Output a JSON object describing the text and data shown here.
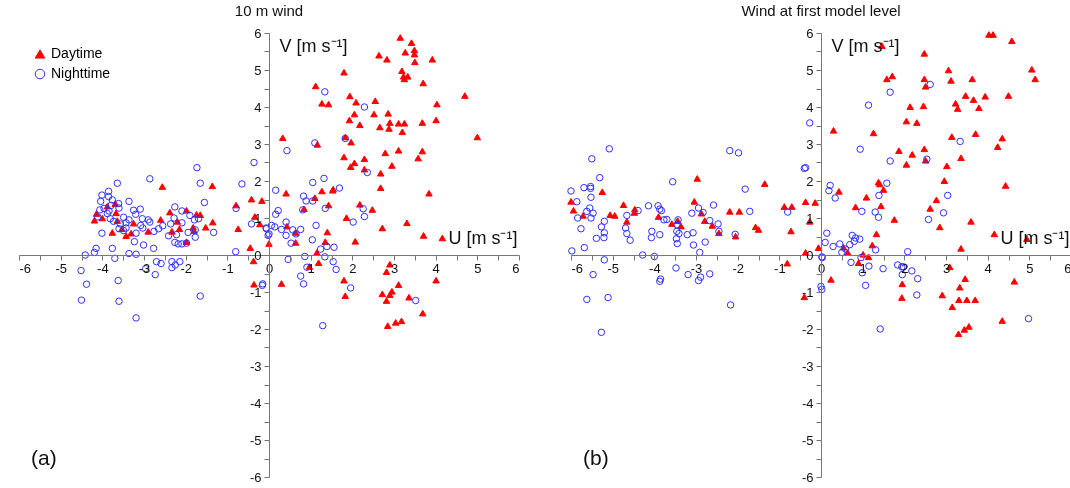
{
  "chart_data": [
    {
      "type": "scatter",
      "title": "10 m wind",
      "xlabel": "U [m s⁻¹]",
      "ylabel": "V [m s⁻¹]",
      "annotations": [
        "(a)"
      ],
      "legend": "top left",
      "xlim": [
        -6,
        6
      ],
      "ylim": [
        -6,
        6
      ],
      "xticks": [
        -6,
        {
          "value": -5.5,
          "label": null
        },
        -5,
        {
          "value": -4.5,
          "label": null
        },
        -4,
        {
          "value": -3.5,
          "label": null
        },
        -3,
        {
          "value": -2.5,
          "label": null
        },
        -2,
        {
          "value": -1.5,
          "label": null
        },
        -1,
        {
          "value": -0.5,
          "label": null
        },
        0,
        {
          "value": 0.5,
          "label": null
        },
        1,
        {
          "value": 1.5,
          "label": null
        },
        2,
        {
          "value": 2.5,
          "label": null
        },
        3,
        {
          "value": 3.5,
          "label": null
        },
        4,
        {
          "value": 4.5,
          "label": null
        },
        5,
        {
          "value": 5.5,
          "label": null
        },
        6
      ],
      "yticks": [
        -6,
        {
          "value": -5.5,
          "label": null
        },
        -5,
        {
          "value": -4.5,
          "label": null
        },
        -4,
        {
          "value": -3.5,
          "label": null
        },
        -3,
        {
          "value": -2.5,
          "label": null
        },
        -2,
        {
          "value": -1.5,
          "label": null
        },
        -1,
        {
          "value": -0.5,
          "label": null
        },
        0,
        {
          "value": 0.5,
          "label": null
        },
        1,
        {
          "value": 1.5,
          "label": null
        },
        2,
        {
          "value": 2.5,
          "label": null
        },
        3,
        {
          "value": 3.5,
          "label": null
        },
        4,
        {
          "value": 4.5,
          "label": null
        },
        5,
        {
          "value": 5.5,
          "label": null
        },
        6
      ],
      "series": [
        {
          "name": "Daytime",
          "color": "#ff0000",
          "marker": "triangle",
          "x": [
            3.15,
            3.42,
            2.64,
            3.27,
            3.49,
            3.49,
            2.83,
            3.92,
            3.5,
            3.19,
            1.8,
            3.23,
            3.33,
            3.25,
            3.7,
            1.12,
            4.7,
            1.27,
            1.43,
            1.94,
            2.09,
            2.55,
            4.03,
            2.05,
            2.52,
            2.86,
            1.93,
            4.01,
            2.18,
            2.66,
            2.9,
            3.11,
            3.25,
            3.68,
            2.88,
            3.2,
            0.33,
            1.16,
            1.83,
            1.97,
            5.0,
            3.11,
            2.79,
            3.68,
            1.8,
            2.29,
            3.58,
            2.05,
            2.95,
            1.96,
            2.29,
            2.68,
            2.68,
            0.41,
            1.54,
            1.53,
            1.27,
            3.84,
            1.1,
            1.43,
            2.18,
            0.84,
            2.48,
            1.86,
            3.31,
            2.72,
            0.43,
            0.64,
            1.4,
            3.71,
            4.16,
            0.64,
            1.35,
            2.07,
            0,
            1.15,
            0.97,
            1.19,
            2.9,
            2.82,
            0.3,
            1.8,
            4.01,
            3.11,
            1.83,
            2.72,
            2.95,
            2.9,
            2.82,
            3.36,
            3.69,
            2.85,
            3.04,
            3.18,
            -2.56,
            -1.36,
            -0.42,
            -0.17,
            -0.79,
            -3.88,
            -3.69,
            -4.14,
            -3.67,
            -2.38,
            -1.98,
            -1.74,
            -1.65,
            -0.34,
            -4.19,
            -4.0,
            -3.64,
            -2.6,
            -2.2,
            -1.35,
            -0.22,
            -3.25,
            -3.53,
            -3.76,
            -3.31,
            -3.43,
            -2.9,
            -2.33,
            -2.15,
            -1.8,
            -1.82,
            -1.52,
            -0.74,
            -1.98,
            -0.45,
            -0.37,
            -0.36
          ],
          "values": [
            5.88,
            5.74,
            5.4,
            5.48,
            5.54,
            5.43,
            5.29,
            5.29,
            5.22,
            4.98,
            4.94,
            4.83,
            4.83,
            4.76,
            4.65,
            4.57,
            4.31,
            4.1,
            4.08,
            4.3,
            4.13,
            4.17,
            4.08,
            3.81,
            3.81,
            3.83,
            3.65,
            3.65,
            3.52,
            3.46,
            3.58,
            3.56,
            3.56,
            3.58,
            3.42,
            3.33,
            3.17,
            2.99,
            3.19,
            3.05,
            3.19,
            2.83,
            2.76,
            2.81,
            2.65,
            2.6,
            2.62,
            2.49,
            2.42,
            2.39,
            2.32,
            2.21,
            1.82,
            1.67,
            1.78,
            1.75,
            1.73,
            1.67,
            1.55,
            1.35,
            1.37,
            1.25,
            1.23,
            1.01,
            0.87,
            0.73,
            0.78,
            0.61,
            0.62,
            0.53,
            0.46,
            0.34,
            0.36,
            0.37,
            0.31,
            0.07,
            -0.31,
            -0.21,
            -0.25,
            -0.45,
            -0.77,
            -0.68,
            -0.68,
            -0.8,
            -1.1,
            -1.05,
            -0.98,
            -1.07,
            -1.23,
            -1.14,
            -1.57,
            -1.91,
            -1.82,
            -1.78,
            1.85,
            1.87,
            1.51,
            1.47,
            1.35,
            1.32,
            1.39,
            1.12,
            1.14,
            1.16,
            1.21,
            1.1,
            1.09,
            1.04,
            0.94,
            1.0,
            0.93,
            0.96,
            0.91,
            0.89,
            0.84,
            0.86,
            0.71,
            0.61,
            0.59,
            0.52,
            0.64,
            0.64,
            0.71,
            0.66,
            0.75,
            0.75,
            0.71,
            0.36,
            0.2,
            -0.16,
            -0.79
          ]
        },
        {
          "name": "Nighttime",
          "color": "#3030ff",
          "marker": "circle",
          "x": [
            -1.73,
            -0.36,
            -2.86,
            -1.65,
            -0.65,
            -3.64,
            -4.01,
            -3.85,
            -3.85,
            -4.04,
            -3.76,
            -3.36,
            -3.61,
            -1.55,
            -2.26,
            -4.06,
            -3.96,
            -3.84,
            -3.88,
            -3.79,
            -3.6,
            -3.25,
            -3.09,
            -3.2,
            -2.09,
            -0.79,
            -4.11,
            -3.81,
            -3.49,
            -3.36,
            -3.04,
            -2.9,
            -2.28,
            -2.36,
            -2.09,
            -1.9,
            -1.79,
            -1.69,
            -3.73,
            -3.57,
            -3.43,
            -3.43,
            -3.08,
            -2.65,
            -2.86,
            -2.76,
            -2.55,
            -3.03,
            -3.49,
            -3.6,
            -3.19,
            -2.41,
            -2.22,
            -1.94,
            -1.77,
            -1.77,
            -1.33,
            -4.01,
            -3.23,
            -2.26,
            -2.18,
            -2.09,
            -1.98,
            -3.01,
            -2.77,
            -0.42,
            -0.07,
            0,
            -3.76,
            -4.15,
            -4.19,
            -4.41,
            -3.36,
            -3.19,
            -0.8,
            -3.7,
            -2.7,
            -2.59,
            -2.33,
            -2.14,
            -2.33,
            -2.25,
            -2.73,
            -2.96,
            -4.51,
            -4.38,
            -3.62,
            -4.5,
            -3.6,
            -1.65,
            -3.19,
            -0.15,
            1.34,
            2.29,
            1.1,
            0.43,
            1.83,
            2.36,
            1.32,
            1.05,
            1.69,
            0.16,
            0.83,
            0.89,
            1.05,
            0.81,
            1.35,
            2.26,
            0.22,
            0.16,
            2.29,
            2.02,
            0.41,
            0.06,
            0.14,
            1.13,
            -0.06,
            0.3,
            0.57,
            0.76,
            -0.02,
            0.41,
            0.53,
            0.65,
            1.04,
            1.56,
            1.39,
            1.24,
            0.86,
            1.34,
            0.46,
            1.54,
            0.91,
            1.61,
            0.76,
            0.83,
            -0.16,
            1.96,
            3.52,
            1.29
          ],
          "values": [
            2.36,
            2.5,
            2.06,
            1.94,
            1.92,
            1.94,
            1.62,
            1.72,
            1.58,
            1.45,
            1.49,
            1.45,
            1.39,
            1.42,
            1.3,
            1.22,
            1.26,
            1.19,
            1.12,
            1.34,
            1.27,
            1.21,
            1.24,
            1.1,
            1.19,
            1.26,
            1.03,
            0.98,
            1.02,
            0.95,
            0.98,
            0.95,
            1.0,
            0.84,
            0.87,
            1.07,
            0.95,
            0.98,
            0.91,
            0.84,
            0.87,
            0.73,
            0.8,
            0.71,
            0.89,
            0.64,
            0.79,
            0.73,
            0.66,
            0.71,
            0.59,
            0.52,
            0.55,
            0.61,
            0.68,
            0.48,
            0.61,
            0.59,
            0.36,
            0.34,
            0.3,
            0.3,
            0.32,
            0.27,
            0.18,
            0.84,
            0.73,
            0.57,
            0.18,
            0.18,
            0.07,
            0.0,
            0.04,
            0.02,
            0.09,
            -0.09,
            -0.18,
            -0.23,
            -0.18,
            -0.18,
            -0.34,
            -0.27,
            -0.53,
            -0.37,
            -0.42,
            -0.79,
            -0.69,
            -1.22,
            -1.25,
            -1.11,
            -1.7,
            -0.78,
            4.41,
            4.0,
            3.03,
            2.82,
            3.15,
            2.23,
            2.07,
            1.96,
            1.81,
            1.75,
            1.59,
            1.46,
            1.46,
            1.22,
            1.26,
            1.25,
            1.2,
            1.1,
            1.04,
            0.89,
            0.89,
            0.8,
            0.76,
            0.8,
            0.71,
            0.69,
            0.68,
            0.69,
            0.53,
            0.53,
            0.32,
            0.57,
            0.41,
            0.21,
            0.23,
            0.16,
            -0.04,
            -0.05,
            -0.12,
            -0.18,
            -0.33,
            -0.39,
            -0.57,
            -0.78,
            -0.82,
            -0.89,
            -1.23,
            -1.91
          ]
        }
      ]
    },
    {
      "type": "scatter",
      "title": "Wind at first model level",
      "xlabel": "U [m s⁻¹]",
      "ylabel": "V [m s⁻¹]",
      "annotations": [
        "(b)"
      ],
      "xlim": [
        -6,
        6
      ],
      "ylim": [
        -6,
        6
      ],
      "xticks": [
        -6,
        {
          "value": -5.5,
          "label": null
        },
        -5,
        {
          "value": -4.5,
          "label": null
        },
        -4,
        {
          "value": -3.5,
          "label": null
        },
        -3,
        {
          "value": -2.5,
          "label": null
        },
        -2,
        {
          "value": -1.5,
          "label": null
        },
        -1,
        {
          "value": -0.5,
          "label": null
        },
        0,
        {
          "value": 0.5,
          "label": null
        },
        1,
        {
          "value": 1.5,
          "label": null
        },
        2,
        {
          "value": 2.5,
          "label": null
        },
        3,
        {
          "value": 3.5,
          "label": null
        },
        4,
        {
          "value": 4.5,
          "label": null
        },
        5,
        {
          "value": 5.5,
          "label": null
        },
        6
      ],
      "yticks": [
        -6,
        {
          "value": -5.5,
          "label": null
        },
        -5,
        {
          "value": -4.5,
          "label": null
        },
        -4,
        {
          "value": -3.5,
          "label": null
        },
        -3,
        {
          "value": -2.5,
          "label": null
        },
        -2,
        {
          "value": -1.5,
          "label": null
        },
        -1,
        {
          "value": -0.5,
          "label": null
        },
        0,
        {
          "value": 0.5,
          "label": null
        },
        1,
        {
          "value": 1.5,
          "label": null
        },
        2,
        {
          "value": 2.5,
          "label": null
        },
        3,
        {
          "value": 3.5,
          "label": null
        },
        4,
        {
          "value": 4.5,
          "label": null
        },
        5,
        {
          "value": 5.5,
          "label": null
        },
        6
      ],
      "series": [
        {
          "color": "#ff0000",
          "marker": "triangle",
          "x": [
            -6.0,
            -5.94,
            -5.71,
            -5.25,
            -5.06,
            -4.95,
            -4.74,
            -4.66,
            -4.47,
            -4.48,
            -3.9,
            -3.58,
            -3.44,
            -3.36,
            -3.04,
            -2.97,
            -2.87,
            -2.79,
            -2.61,
            -2.45,
            -2.19,
            -1.96,
            -2.05,
            -1.57,
            -1.5,
            -1.35,
            -0.88,
            -0.7,
            -0.72,
            -0.37,
            -0.14,
            -0.27,
            -0.37,
            -0.06,
            -0.81,
            -0.4,
            4.03,
            4.13,
            4.58,
            1.46,
            2.48,
            3.06,
            5.06,
            1.58,
            1.71,
            2.48,
            3.12,
            3.63,
            5.14,
            2.51,
            3.47,
            3.94,
            4.5,
            3.66,
            3.23,
            3.28,
            2.14,
            2.46,
            3.79,
            2.05,
            2.3,
            0.3,
            1.26,
            3.71,
            3.14,
            4.35,
            4.24,
            1.87,
            2.19,
            2.48,
            3.36,
            2.05,
            2.51,
            3.02,
            2.96,
            1.38,
            1.41,
            1.5,
            0.43,
            4.43,
            1.09,
            2.77,
            1.44,
            0.83,
            2.62,
            1.76,
            3.6,
            2.85,
            1.33,
            4.16,
            4.94,
            1.23,
            0.54,
            0.64,
            3.36,
            1.01,
            1.14,
            0.9,
            3.09,
            0.24,
            1.95,
            3.46,
            4.64,
            3.33,
            1.94,
            2.91,
            3.15,
            3.31,
            3.5,
            3.7,
            4.35,
            3.44,
            3.3,
            3.55
          ],
          "values": [
            1.45,
            1.21,
            1.07,
            1.71,
            1.09,
            1.07,
            1.36,
            0.91,
            1.24,
            1.15,
            1.04,
            0.85,
            0.93,
            0.78,
            1.45,
            2.07,
            1.13,
            0.93,
            0.8,
            0.6,
            1.18,
            1.18,
            0.51,
            0.76,
            0.69,
            1.93,
            1.31,
            1.31,
            0.65,
            1.44,
            1.42,
            0.91,
            0.07,
            0.2,
            -0.22,
            -1.13,
            5.96,
            5.96,
            5.79,
            5.66,
            5.45,
            5.0,
            5.02,
            4.76,
            4.84,
            4.76,
            4.72,
            4.76,
            4.76,
            4.56,
            4.31,
            4.29,
            4.31,
            4.2,
            4.1,
            3.96,
            4.01,
            4.03,
            3.98,
            3.62,
            3.58,
            3.37,
            3.3,
            3.28,
            3.2,
            3.16,
            2.93,
            2.82,
            2.72,
            2.87,
            2.63,
            2.45,
            2.56,
            2.41,
            2.01,
            1.97,
            1.92,
            1.77,
            1.72,
            1.88,
            1.56,
            1.49,
            1.33,
            1.3,
            1.26,
            0.96,
            0.91,
            0.76,
            0.57,
            0.57,
            0.44,
            0.27,
            0.21,
            0.07,
            0.18,
            0.02,
            -0.05,
            -0.21,
            -0.32,
            -0.66,
            -0.78,
            -0.64,
            -0.71,
            -0.87,
            -1.15,
            -1.08,
            -1.4,
            -1.21,
            -1.21,
            -1.21,
            -1.77,
            -2.01,
            -2.13,
            -1.93
          ]
        },
        {
          "color": "#3030ff",
          "marker": "circle",
          "x": [
            -5.08,
            -2.19,
            -1.98,
            -5.5,
            -0.37,
            -5.31,
            -3.56,
            -1.82,
            -5.69,
            -5.53,
            -5.53,
            -5.52,
            -5.86,
            -6.0,
            -5.55,
            -5.62,
            -5.47,
            -5.52,
            -5.84,
            -5.2,
            -5.27,
            -5.76,
            -5.2,
            -5.21,
            -5.39,
            -4.58,
            -4.69,
            -4.66,
            -4.66,
            -4.39,
            -4.14,
            -3.91,
            -3.87,
            -3.83,
            -3.77,
            -3.7,
            -4.06,
            -4.07,
            -3.87,
            -3.46,
            -3.43,
            -3.46,
            -3.41,
            -3.47,
            -3.45,
            -3.21,
            -3.07,
            -3.1,
            -2.94,
            -2.83,
            -2.67,
            -2.58,
            -2.47,
            -2.45,
            -2.78,
            -3.06,
            -2.91,
            -2.06,
            -1.71,
            -0.8,
            -4.28,
            -4.0,
            -5.98,
            -5.68,
            -5.2,
            -5.47,
            -3.48,
            -3.19,
            -2.89,
            -2.94,
            -2.67,
            -3.85,
            -3.87,
            -5.62,
            -5.11,
            -2.17,
            -5.27,
            0.03,
            0.02,
            -0.27,
            1.66,
            2.62,
            1.14,
            0.94,
            -0.4,
            1.66,
            2.54,
            3.34,
            1.58,
            0.22,
            0.19,
            0.34,
            1.39,
            3.04,
            0.98,
            1.3,
            1.38,
            2.58,
            2.94,
            0.14,
            0.1,
            0.29,
            0.45,
            0.5,
            0.75,
            0.83,
            0.93,
            0.69,
            0.8,
            0.59,
            1.31,
            2.08,
            0.02,
            0.72,
            0.96,
            0.99,
            1.15,
            1.49,
            1.84,
            1.94,
            1.98,
            1.95,
            2.18,
            2.32,
            1.07,
            2.3,
            0,
            1.42,
            4.98
          ],
          "values": [
            2.87,
            2.82,
            2.76,
            2.6,
            2.36,
            2.09,
            1.98,
            1.78,
            1.82,
            1.85,
            1.8,
            1.56,
            1.44,
            1.73,
            1.27,
            1.18,
            1.13,
            1.0,
            1.0,
            0.91,
            0.76,
            0.71,
            0.6,
            0.47,
            0.45,
            0.4,
            0.73,
            0.58,
            1.07,
            1.2,
            1.33,
            1.33,
            1.24,
            1.2,
            0.95,
            0.96,
            0.64,
            0.47,
            0.55,
            0.82,
            0.95,
            0.64,
            0.58,
            0.44,
            0.31,
            0.55,
            0.6,
            1.13,
            1.27,
            1.15,
            0.93,
            1.35,
            0.84,
            0.64,
            0.35,
            0.27,
            0.07,
            0.56,
            1.18,
            1.16,
            0.0,
            -0.04,
            0.11,
            0.2,
            -0.13,
            -0.53,
            -0.35,
            -0.53,
            -0.6,
            -0.69,
            -0.51,
            -0.65,
            -0.71,
            -1.2,
            -1.15,
            -1.35,
            -2.09,
            -0.07,
            -0.93,
            3.57,
            4.4,
            4.61,
            4.05,
            2.86,
            2.34,
            2.54,
            2.59,
            3.07,
            1.94,
            1.88,
            1.74,
            1.54,
            1.61,
            1.61,
            1.18,
            1.16,
            1.02,
            0.96,
            1.14,
            0.59,
            0.34,
            0.23,
            0.3,
            0.07,
            0.53,
            0.46,
            0.43,
            0.28,
            0.37,
            0.16,
            0.14,
            0.09,
            -0.05,
            -0.2,
            -0.07,
            -0.48,
            -0.3,
            -0.37,
            -0.27,
            -0.32,
            -0.32,
            -0.53,
            -0.43,
            -0.64,
            -0.82,
            -1.08,
            -0.85,
            -2.0,
            -1.72
          ]
        }
      ]
    }
  ]
}
